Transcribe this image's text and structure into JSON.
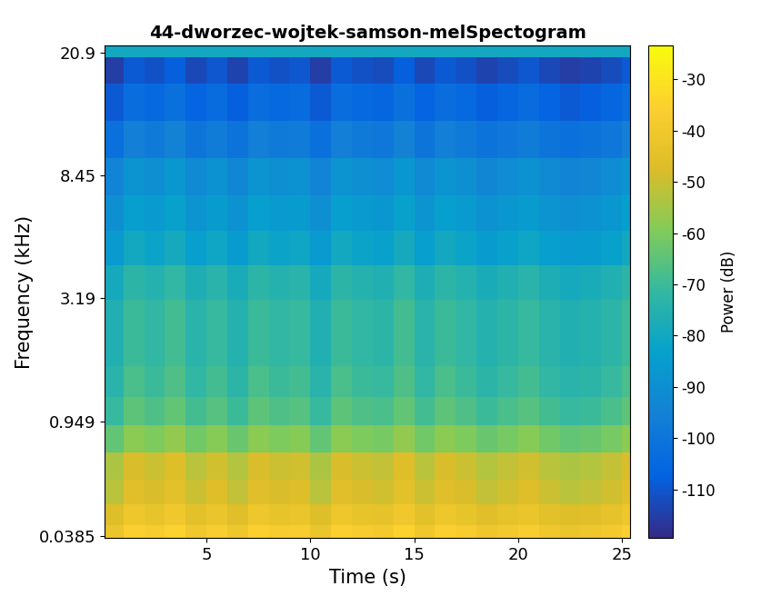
{
  "chart_data": {
    "type": "heatmap",
    "title": "44-dworzec-wojtek-samson-melSpectogram",
    "x_label": "Time (s)",
    "y_label": "Frequency (kHz)",
    "xlim": [
      0.1,
      25.4
    ],
    "xticks": [
      5,
      10,
      15,
      20,
      25
    ],
    "ylim": [
      0.03,
      22
    ],
    "yticks": [
      0.0385,
      0.949,
      3.19,
      8.45,
      20.9
    ],
    "times": [
      0.5,
      1.5,
      2.5,
      3.5,
      4.5,
      5.5,
      6.5,
      7.5,
      8.5,
      9.5,
      10.5,
      11.5,
      12.5,
      13.5,
      14.5,
      15.5,
      16.5,
      17.5,
      18.5,
      19.5,
      20.5,
      21.5,
      22.5,
      23.5,
      24.5,
      25.5
    ],
    "frequencies": [
      0.05,
      0.15,
      0.3,
      0.5,
      0.75,
      1.05,
      1.45,
      2.0,
      2.7,
      3.6,
      4.8,
      6.3,
      8.3,
      11,
      14.5,
      19,
      21.5
    ],
    "cells": [
      [
        -42,
        -36,
        -38,
        -35,
        -40,
        -37,
        -41,
        -36,
        -38,
        -37,
        -42,
        -36,
        -38,
        -39,
        -35,
        -40,
        -36,
        -38,
        -41,
        -39,
        -37,
        -40,
        -42,
        -41,
        -39,
        -36
      ],
      [
        -47,
        -41,
        -43,
        -40,
        -45,
        -42,
        -46,
        -41,
        -43,
        -42,
        -47,
        -41,
        -43,
        -44,
        -40,
        -45,
        -41,
        -43,
        -46,
        -44,
        -42,
        -45,
        -47,
        -46,
        -44,
        -41
      ],
      [
        -52,
        -46,
        -48,
        -45,
        -50,
        -47,
        -51,
        -46,
        -48,
        -47,
        -52,
        -46,
        -48,
        -49,
        -45,
        -50,
        -46,
        -48,
        -51,
        -49,
        -47,
        -50,
        -52,
        -51,
        -49,
        -46
      ],
      [
        -54,
        -48,
        -50,
        -47,
        -52,
        -49,
        -53,
        -48,
        -50,
        -49,
        -54,
        -48,
        -50,
        -51,
        -47,
        -52,
        -48,
        -50,
        -53,
        -51,
        -49,
        -52,
        -54,
        -53,
        -51,
        -48
      ],
      [
        -64,
        -58,
        -60,
        -57,
        -62,
        -59,
        -63,
        -58,
        -60,
        -59,
        -64,
        -58,
        -60,
        -61,
        -57,
        -62,
        -58,
        -60,
        -63,
        -61,
        -59,
        -62,
        -64,
        -63,
        -61,
        -58
      ],
      [
        -71,
        -65,
        -67,
        -64,
        -69,
        -66,
        -70,
        -65,
        -67,
        -66,
        -71,
        -65,
        -67,
        -68,
        -64,
        -69,
        -65,
        -67,
        -70,
        -68,
        -66,
        -69,
        -71,
        -70,
        -68,
        -65
      ],
      [
        -74,
        -68,
        -70,
        -67,
        -72,
        -69,
        -73,
        -68,
        -70,
        -69,
        -74,
        -68,
        -70,
        -71,
        -67,
        -72,
        -68,
        -70,
        -73,
        -71,
        -69,
        -72,
        -74,
        -73,
        -71,
        -68
      ],
      [
        -76,
        -70,
        -72,
        -69,
        -74,
        -71,
        -75,
        -70,
        -72,
        -71,
        -76,
        -70,
        -72,
        -73,
        -69,
        -74,
        -70,
        -72,
        -75,
        -73,
        -71,
        -74,
        -76,
        -75,
        -73,
        -70
      ],
      [
        -76,
        -70,
        -72,
        -69,
        -74,
        -71,
        -75,
        -70,
        -72,
        -71,
        -76,
        -70,
        -72,
        -73,
        -69,
        -74,
        -70,
        -72,
        -75,
        -73,
        -71,
        -74,
        -76,
        -75,
        -73,
        -70
      ],
      [
        -79,
        -73,
        -75,
        -72,
        -77,
        -74,
        -78,
        -73,
        -75,
        -74,
        -79,
        -73,
        -75,
        -76,
        -72,
        -77,
        -73,
        -75,
        -78,
        -76,
        -74,
        -77,
        -79,
        -78,
        -76,
        -73
      ],
      [
        -86,
        -80,
        -82,
        -79,
        -84,
        -81,
        -85,
        -80,
        -82,
        -81,
        -86,
        -80,
        -82,
        -83,
        -79,
        -84,
        -80,
        -82,
        -85,
        -83,
        -81,
        -84,
        -86,
        -85,
        -83,
        -80
      ],
      [
        -90,
        -84,
        -86,
        -83,
        -88,
        -85,
        -89,
        -84,
        -86,
        -85,
        -90,
        -84,
        -86,
        -87,
        -83,
        -88,
        -84,
        -86,
        -89,
        -87,
        -85,
        -88,
        -90,
        -89,
        -87,
        -84
      ],
      [
        -94,
        -88,
        -90,
        -87,
        -92,
        -89,
        -93,
        -88,
        -90,
        -89,
        -94,
        -88,
        -90,
        -91,
        -87,
        -92,
        -88,
        -90,
        -93,
        -91,
        -89,
        -92,
        -94,
        -93,
        -91,
        -88
      ],
      [
        -102,
        -96,
        -98,
        -95,
        -100,
        -97,
        -101,
        -96,
        -98,
        -97,
        -102,
        -96,
        -98,
        -99,
        -95,
        -100,
        -96,
        -98,
        -101,
        -99,
        -97,
        -100,
        -102,
        -101,
        -99,
        -96
      ],
      [
        -109,
        -103,
        -105,
        -102,
        -107,
        -104,
        -108,
        -103,
        -105,
        -104,
        -109,
        -103,
        -105,
        -106,
        -102,
        -107,
        -103,
        -105,
        -108,
        -106,
        -104,
        -107,
        -109,
        -108,
        -106,
        -103
      ],
      [
        -115,
        -109,
        -111,
        -108,
        -113,
        -110,
        -114,
        -109,
        -111,
        -110,
        -115,
        -109,
        -111,
        -112,
        -108,
        -113,
        -109,
        -111,
        -114,
        -112,
        -110,
        -113,
        -115,
        -114,
        -112,
        -109
      ],
      [
        -80,
        -80,
        -80,
        -80,
        -80,
        -80,
        -80,
        -80,
        -80,
        -80,
        -80,
        -80,
        -80,
        -80,
        -80,
        -80,
        -80,
        -80,
        -80,
        -80,
        -80,
        -80,
        -80,
        -80,
        -80,
        -80
      ]
    ],
    "colorbar_label": "Power (dB)",
    "colorbar_range": [
      -119.5,
      -23.4
    ],
    "colorbar_ticks": [
      -110,
      -100,
      -90,
      -80,
      -70,
      -60,
      -50,
      -40,
      -30
    ]
  }
}
